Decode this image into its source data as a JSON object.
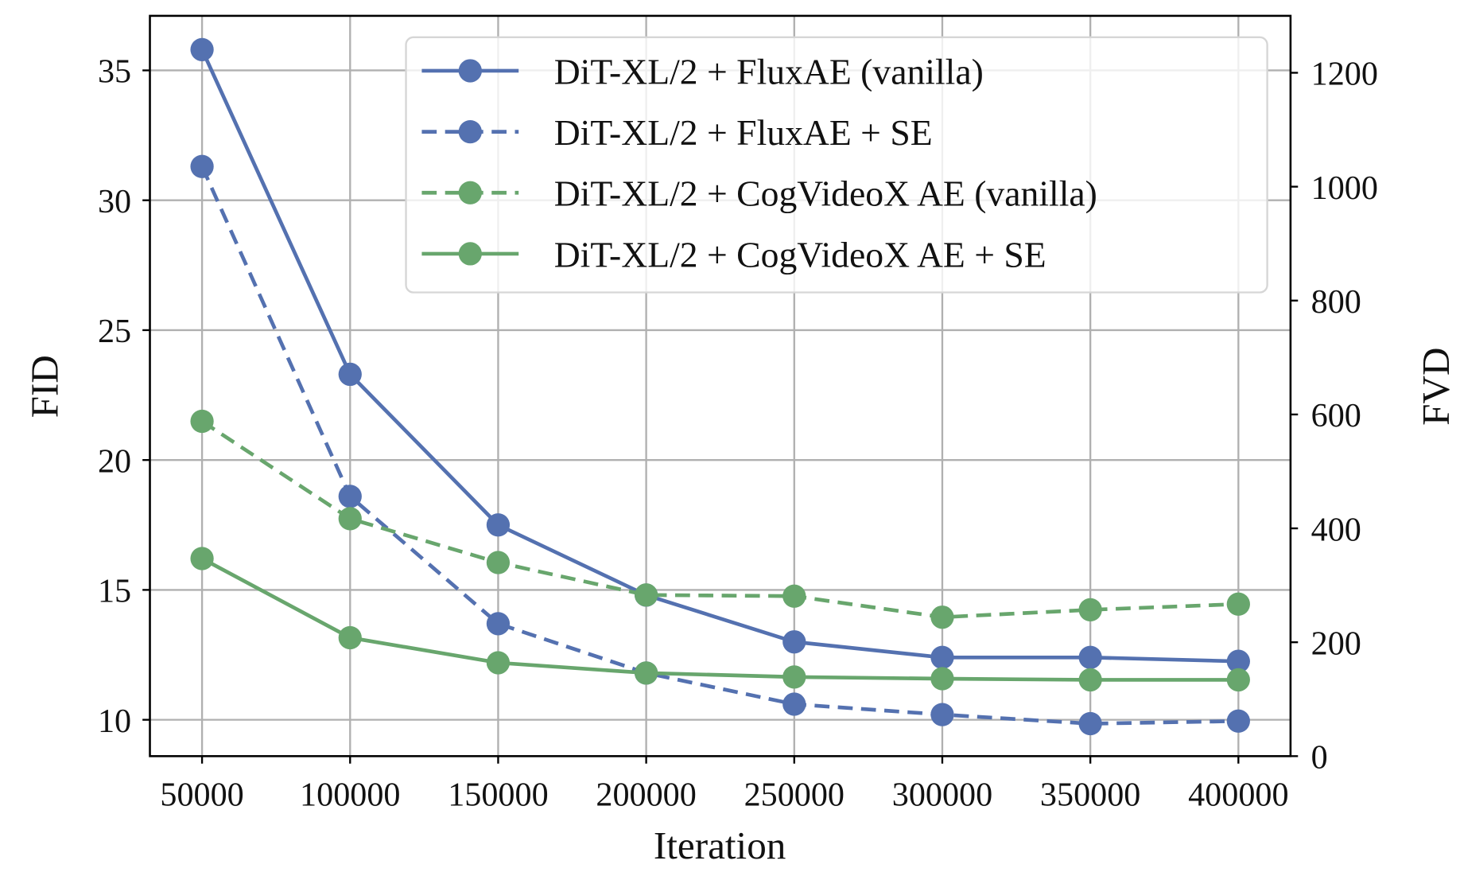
{
  "chart_data": {
    "type": "line",
    "xlabel": "Iteration",
    "ylabel_left": "FID",
    "ylabel_right": "FVD",
    "x": [
      50000,
      100000,
      150000,
      200000,
      250000,
      300000,
      350000,
      400000
    ],
    "x_ticks": [
      "50000",
      "100000",
      "150000",
      "200000",
      "250000",
      "300000",
      "350000",
      "400000"
    ],
    "y_left_ticks": [
      10,
      15,
      20,
      25,
      30,
      35
    ],
    "y_right_ticks": [
      0,
      200,
      400,
      600,
      800,
      1000,
      1200
    ],
    "ylim_left": [
      8.6,
      37.1
    ],
    "ylim_right": [
      0,
      1300
    ],
    "grid": true,
    "legend_placement": "top-right",
    "series": [
      {
        "name": "DiT-XL/2 + FluxAE (vanilla)",
        "axis": "left",
        "style": "solid",
        "color": "#5471b0",
        "values": [
          35.8,
          23.3,
          17.5,
          14.8,
          13.0,
          12.4,
          12.4,
          12.25
        ]
      },
      {
        "name": "DiT-XL/2 + FluxAE + SE",
        "axis": "left",
        "style": "dashed",
        "color": "#5471b0",
        "values": [
          31.3,
          18.6,
          13.7,
          11.8,
          10.6,
          10.2,
          9.85,
          9.95
        ]
      },
      {
        "name": "DiT-XL/2 + CogVideoX AE (vanilla)",
        "axis": "right",
        "style": "dashed",
        "color": "#68a66d",
        "values": [
          588,
          417,
          340,
          283,
          281,
          244,
          257,
          267
        ]
      },
      {
        "name": "DiT-XL/2 + CogVideoX AE + SE",
        "axis": "right",
        "style": "solid",
        "color": "#68a66d",
        "values": [
          347,
          208,
          164,
          146,
          139,
          136,
          134,
          134
        ]
      }
    ]
  }
}
